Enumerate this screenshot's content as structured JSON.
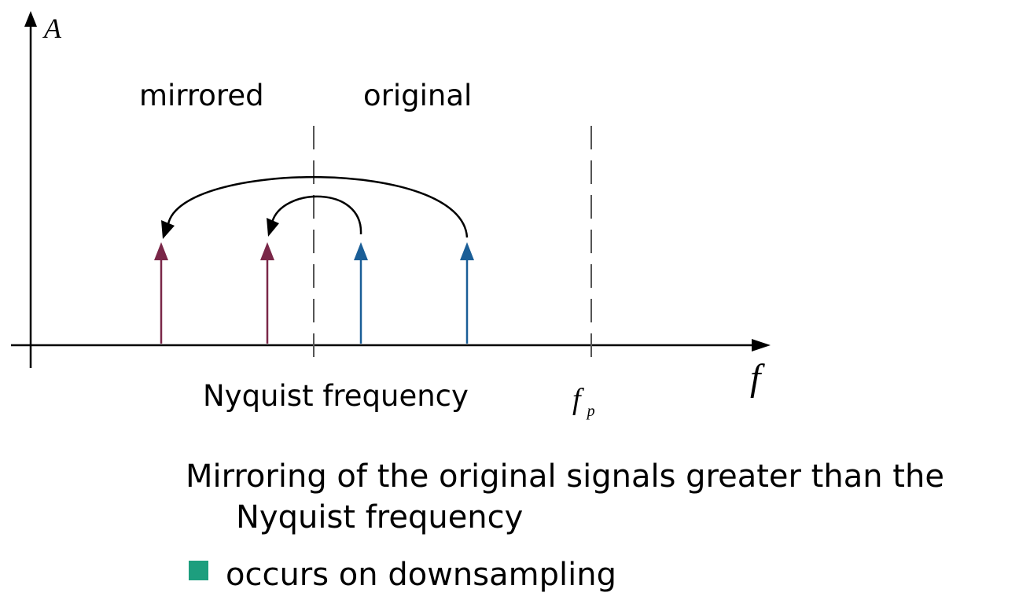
{
  "diagram": {
    "y_axis_label": "A",
    "x_axis_label": "f",
    "region_left_label": "mirrored",
    "region_right_label": "original",
    "nyquist_label": "Nyquist frequency",
    "sampling_freq_symbol": "f",
    "sampling_freq_subscript": "p",
    "colors": {
      "axis": "#000000",
      "mirrored_arrow": "#7a2748",
      "original_arrow": "#1a5e97",
      "dashed_line": "#555555",
      "bullet": "#1d9e7e"
    }
  },
  "caption": {
    "line1": "Mirroring of the original signals greater than the",
    "line2": "Nyquist frequency"
  },
  "bullet": {
    "text": "occurs on downsampling"
  }
}
